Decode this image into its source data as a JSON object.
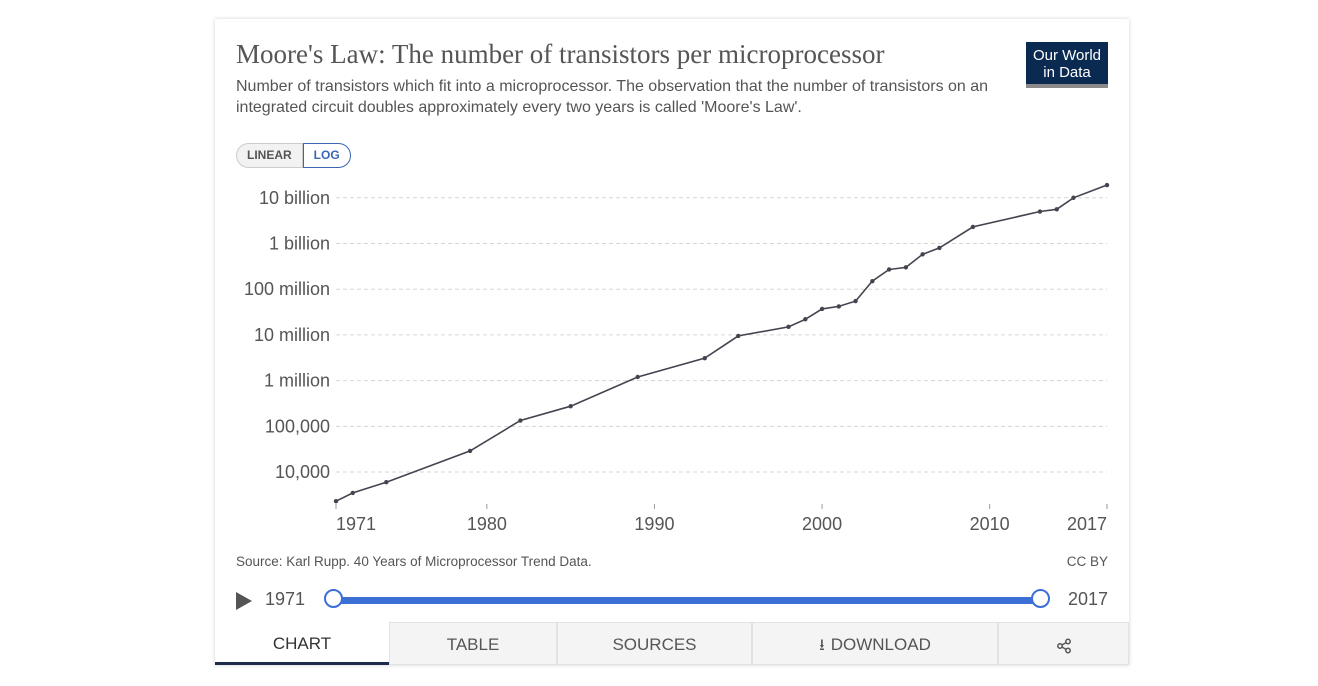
{
  "header": {
    "title": "Moore's Law: The number of transistors per microprocessor",
    "subtitle": "Number of transistors which fit into a microprocessor. The observation that the number of transistors on an integrated circuit doubles approximately every two years is called 'Moore's Law'.",
    "logo_line1": "Our World",
    "logo_line2": "in Data"
  },
  "scale_toggle": {
    "linear_label": "LINEAR",
    "log_label": "LOG",
    "selected": "LOG"
  },
  "chart_data": {
    "type": "line",
    "title": "Moore's Law: The number of transistors per microprocessor",
    "yscale": "log",
    "xlim": [
      1971,
      2017
    ],
    "ylim": [
      2000,
      20000000000
    ],
    "y_ticks": [
      {
        "value": 10000,
        "label": "10,000"
      },
      {
        "value": 100000,
        "label": "100,000"
      },
      {
        "value": 1000000,
        "label": "1 million"
      },
      {
        "value": 10000000,
        "label": "10 million"
      },
      {
        "value": 100000000,
        "label": "100 million"
      },
      {
        "value": 1000000000,
        "label": "1 billion"
      },
      {
        "value": 10000000000,
        "label": "10 billion"
      }
    ],
    "x_ticks": [
      {
        "value": 1971,
        "label": "1971"
      },
      {
        "value": 1980,
        "label": "1980"
      },
      {
        "value": 1990,
        "label": "1990"
      },
      {
        "value": 2000,
        "label": "2000"
      },
      {
        "value": 2010,
        "label": "2010"
      },
      {
        "value": 2017,
        "label": "2017"
      }
    ],
    "grid": "horizontal dashed",
    "series": [
      {
        "color": "#444450",
        "points": [
          [
            1971,
            2300
          ],
          [
            1972,
            3500
          ],
          [
            1974,
            6000
          ],
          [
            1979,
            29000
          ],
          [
            1982,
            134000
          ],
          [
            1985,
            275000
          ],
          [
            1989,
            1200000
          ],
          [
            1993,
            3100000
          ],
          [
            1995,
            9500000
          ],
          [
            1998,
            15000000
          ],
          [
            1999,
            22000000
          ],
          [
            2000,
            37000000
          ],
          [
            2001,
            42000000
          ],
          [
            2002,
            55000000
          ],
          [
            2003,
            150000000
          ],
          [
            2004,
            270000000
          ],
          [
            2005,
            300000000
          ],
          [
            2006,
            580000000
          ],
          [
            2007,
            800000000
          ],
          [
            2009,
            2300000000
          ],
          [
            2013,
            5000000000
          ],
          [
            2014,
            5600000000
          ],
          [
            2015,
            10000000000
          ],
          [
            2017,
            19000000000
          ]
        ]
      }
    ]
  },
  "footer": {
    "source": "Source: Karl Rupp. 40 Years of Microprocessor Trend Data.",
    "license": "CC BY"
  },
  "timeline": {
    "start_label": "1971",
    "end_label": "2017"
  },
  "tabs": {
    "chart": "CHART",
    "table": "TABLE",
    "sources": "SOURCES",
    "download": "DOWNLOAD",
    "active": "CHART"
  },
  "icons": {
    "play": "play-icon",
    "download": "download-icon",
    "share": "share-icon"
  }
}
